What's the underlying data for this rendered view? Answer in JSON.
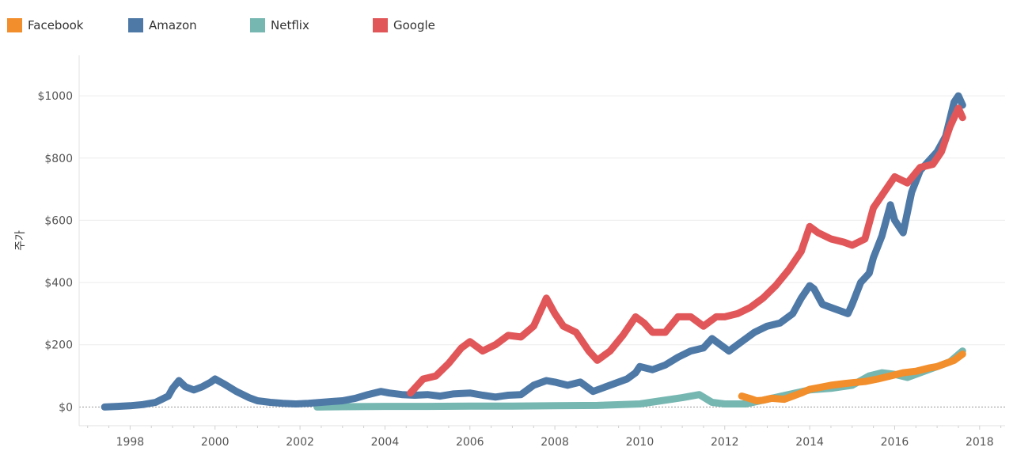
{
  "chart_data": {
    "type": "line",
    "title": "",
    "xlabel": "",
    "ylabel": "주가",
    "xlim": [
      1996.8,
      2018.6
    ],
    "ylim": [
      -60,
      1130
    ],
    "grid": true,
    "legend_position": "top-left",
    "x_ticks": [
      "1998",
      "2000",
      "2002",
      "2004",
      "2006",
      "2008",
      "2010",
      "2012",
      "2014",
      "2016",
      "2018"
    ],
    "y_ticks": [
      {
        "value": 0,
        "label": "$0"
      },
      {
        "value": 200,
        "label": "$200"
      },
      {
        "value": 400,
        "label": "$400"
      },
      {
        "value": 600,
        "label": "$600"
      },
      {
        "value": 800,
        "label": "$800"
      },
      {
        "value": 1000,
        "label": "$1000"
      }
    ],
    "series": [
      {
        "name": "Facebook",
        "color": "#f28e2b",
        "points": [
          [
            2012.4,
            35
          ],
          [
            2012.6,
            27
          ],
          [
            2012.75,
            20
          ],
          [
            2012.9,
            22
          ],
          [
            2013.1,
            28
          ],
          [
            2013.4,
            25
          ],
          [
            2013.6,
            35
          ],
          [
            2013.8,
            45
          ],
          [
            2014.0,
            57
          ],
          [
            2014.2,
            62
          ],
          [
            2014.5,
            70
          ],
          [
            2014.8,
            75
          ],
          [
            2015.0,
            78
          ],
          [
            2015.3,
            82
          ],
          [
            2015.6,
            90
          ],
          [
            2015.9,
            100
          ],
          [
            2016.2,
            110
          ],
          [
            2016.5,
            115
          ],
          [
            2016.8,
            125
          ],
          [
            2017.0,
            130
          ],
          [
            2017.2,
            140
          ],
          [
            2017.4,
            150
          ],
          [
            2017.6,
            170
          ]
        ]
      },
      {
        "name": "Amazon",
        "color": "#4e79a7",
        "points": [
          [
            1997.4,
            0
          ],
          [
            1997.7,
            2
          ],
          [
            1998.0,
            4
          ],
          [
            1998.3,
            8
          ],
          [
            1998.6,
            15
          ],
          [
            1998.9,
            35
          ],
          [
            1999.0,
            60
          ],
          [
            1999.15,
            85
          ],
          [
            1999.3,
            65
          ],
          [
            1999.5,
            55
          ],
          [
            1999.7,
            65
          ],
          [
            1999.9,
            80
          ],
          [
            2000.0,
            90
          ],
          [
            2000.2,
            75
          ],
          [
            2000.5,
            50
          ],
          [
            2000.8,
            30
          ],
          [
            2001.0,
            20
          ],
          [
            2001.3,
            15
          ],
          [
            2001.6,
            12
          ],
          [
            2001.9,
            10
          ],
          [
            2002.2,
            12
          ],
          [
            2002.5,
            15
          ],
          [
            2002.8,
            18
          ],
          [
            2003.0,
            20
          ],
          [
            2003.3,
            28
          ],
          [
            2003.6,
            40
          ],
          [
            2003.9,
            50
          ],
          [
            2004.1,
            45
          ],
          [
            2004.4,
            40
          ],
          [
            2004.7,
            38
          ],
          [
            2005.0,
            40
          ],
          [
            2005.3,
            35
          ],
          [
            2005.6,
            42
          ],
          [
            2006.0,
            45
          ],
          [
            2006.3,
            38
          ],
          [
            2006.6,
            32
          ],
          [
            2006.9,
            38
          ],
          [
            2007.2,
            40
          ],
          [
            2007.5,
            70
          ],
          [
            2007.8,
            85
          ],
          [
            2008.0,
            80
          ],
          [
            2008.3,
            70
          ],
          [
            2008.6,
            80
          ],
          [
            2008.9,
            50
          ],
          [
            2009.1,
            60
          ],
          [
            2009.4,
            75
          ],
          [
            2009.7,
            90
          ],
          [
            2009.9,
            110
          ],
          [
            2010.0,
            130
          ],
          [
            2010.3,
            120
          ],
          [
            2010.6,
            135
          ],
          [
            2010.9,
            160
          ],
          [
            2011.2,
            180
          ],
          [
            2011.5,
            190
          ],
          [
            2011.7,
            220
          ],
          [
            2011.9,
            200
          ],
          [
            2012.1,
            180
          ],
          [
            2012.4,
            210
          ],
          [
            2012.7,
            240
          ],
          [
            2013.0,
            260
          ],
          [
            2013.3,
            270
          ],
          [
            2013.6,
            300
          ],
          [
            2013.8,
            350
          ],
          [
            2014.0,
            390
          ],
          [
            2014.1,
            380
          ],
          [
            2014.3,
            330
          ],
          [
            2014.5,
            320
          ],
          [
            2014.7,
            310
          ],
          [
            2014.9,
            300
          ],
          [
            2015.0,
            330
          ],
          [
            2015.2,
            400
          ],
          [
            2015.4,
            430
          ],
          [
            2015.5,
            480
          ],
          [
            2015.7,
            550
          ],
          [
            2015.9,
            650
          ],
          [
            2016.0,
            600
          ],
          [
            2016.2,
            560
          ],
          [
            2016.4,
            690
          ],
          [
            2016.6,
            760
          ],
          [
            2016.8,
            790
          ],
          [
            2017.0,
            820
          ],
          [
            2017.2,
            870
          ],
          [
            2017.4,
            980
          ],
          [
            2017.5,
            1000
          ],
          [
            2017.6,
            970
          ]
        ]
      },
      {
        "name": "Netflix",
        "color": "#76b7b2",
        "points": [
          [
            2002.4,
            0
          ],
          [
            2003.0,
            1
          ],
          [
            2004.0,
            2
          ],
          [
            2005.0,
            2
          ],
          [
            2006.0,
            3
          ],
          [
            2007.0,
            3
          ],
          [
            2008.0,
            4
          ],
          [
            2009.0,
            5
          ],
          [
            2010.0,
            10
          ],
          [
            2010.5,
            20
          ],
          [
            2011.0,
            30
          ],
          [
            2011.4,
            40
          ],
          [
            2011.7,
            15
          ],
          [
            2012.0,
            10
          ],
          [
            2012.5,
            10
          ],
          [
            2013.0,
            25
          ],
          [
            2013.5,
            40
          ],
          [
            2014.0,
            55
          ],
          [
            2014.5,
            60
          ],
          [
            2015.0,
            70
          ],
          [
            2015.4,
            100
          ],
          [
            2015.7,
            110
          ],
          [
            2016.0,
            105
          ],
          [
            2016.3,
            95
          ],
          [
            2016.7,
            115
          ],
          [
            2017.0,
            130
          ],
          [
            2017.3,
            145
          ],
          [
            2017.6,
            180
          ]
        ]
      },
      {
        "name": "Google",
        "color": "#e15759",
        "points": [
          [
            2004.6,
            45
          ],
          [
            2004.9,
            90
          ],
          [
            2005.2,
            100
          ],
          [
            2005.5,
            140
          ],
          [
            2005.8,
            190
          ],
          [
            2006.0,
            210
          ],
          [
            2006.3,
            180
          ],
          [
            2006.6,
            200
          ],
          [
            2006.9,
            230
          ],
          [
            2007.2,
            225
          ],
          [
            2007.5,
            260
          ],
          [
            2007.8,
            350
          ],
          [
            2008.0,
            300
          ],
          [
            2008.2,
            260
          ],
          [
            2008.5,
            240
          ],
          [
            2008.8,
            180
          ],
          [
            2009.0,
            150
          ],
          [
            2009.3,
            180
          ],
          [
            2009.6,
            230
          ],
          [
            2009.9,
            290
          ],
          [
            2010.1,
            270
          ],
          [
            2010.3,
            240
          ],
          [
            2010.6,
            240
          ],
          [
            2010.9,
            290
          ],
          [
            2011.2,
            290
          ],
          [
            2011.5,
            260
          ],
          [
            2011.8,
            290
          ],
          [
            2012.0,
            290
          ],
          [
            2012.3,
            300
          ],
          [
            2012.6,
            320
          ],
          [
            2012.9,
            350
          ],
          [
            2013.2,
            390
          ],
          [
            2013.5,
            440
          ],
          [
            2013.8,
            500
          ],
          [
            2014.0,
            580
          ],
          [
            2014.2,
            560
          ],
          [
            2014.5,
            540
          ],
          [
            2014.8,
            530
          ],
          [
            2015.0,
            520
          ],
          [
            2015.3,
            540
          ],
          [
            2015.5,
            640
          ],
          [
            2015.8,
            700
          ],
          [
            2016.0,
            740
          ],
          [
            2016.3,
            720
          ],
          [
            2016.6,
            770
          ],
          [
            2016.9,
            780
          ],
          [
            2017.1,
            820
          ],
          [
            2017.3,
            900
          ],
          [
            2017.5,
            960
          ],
          [
            2017.6,
            930
          ]
        ]
      }
    ]
  }
}
